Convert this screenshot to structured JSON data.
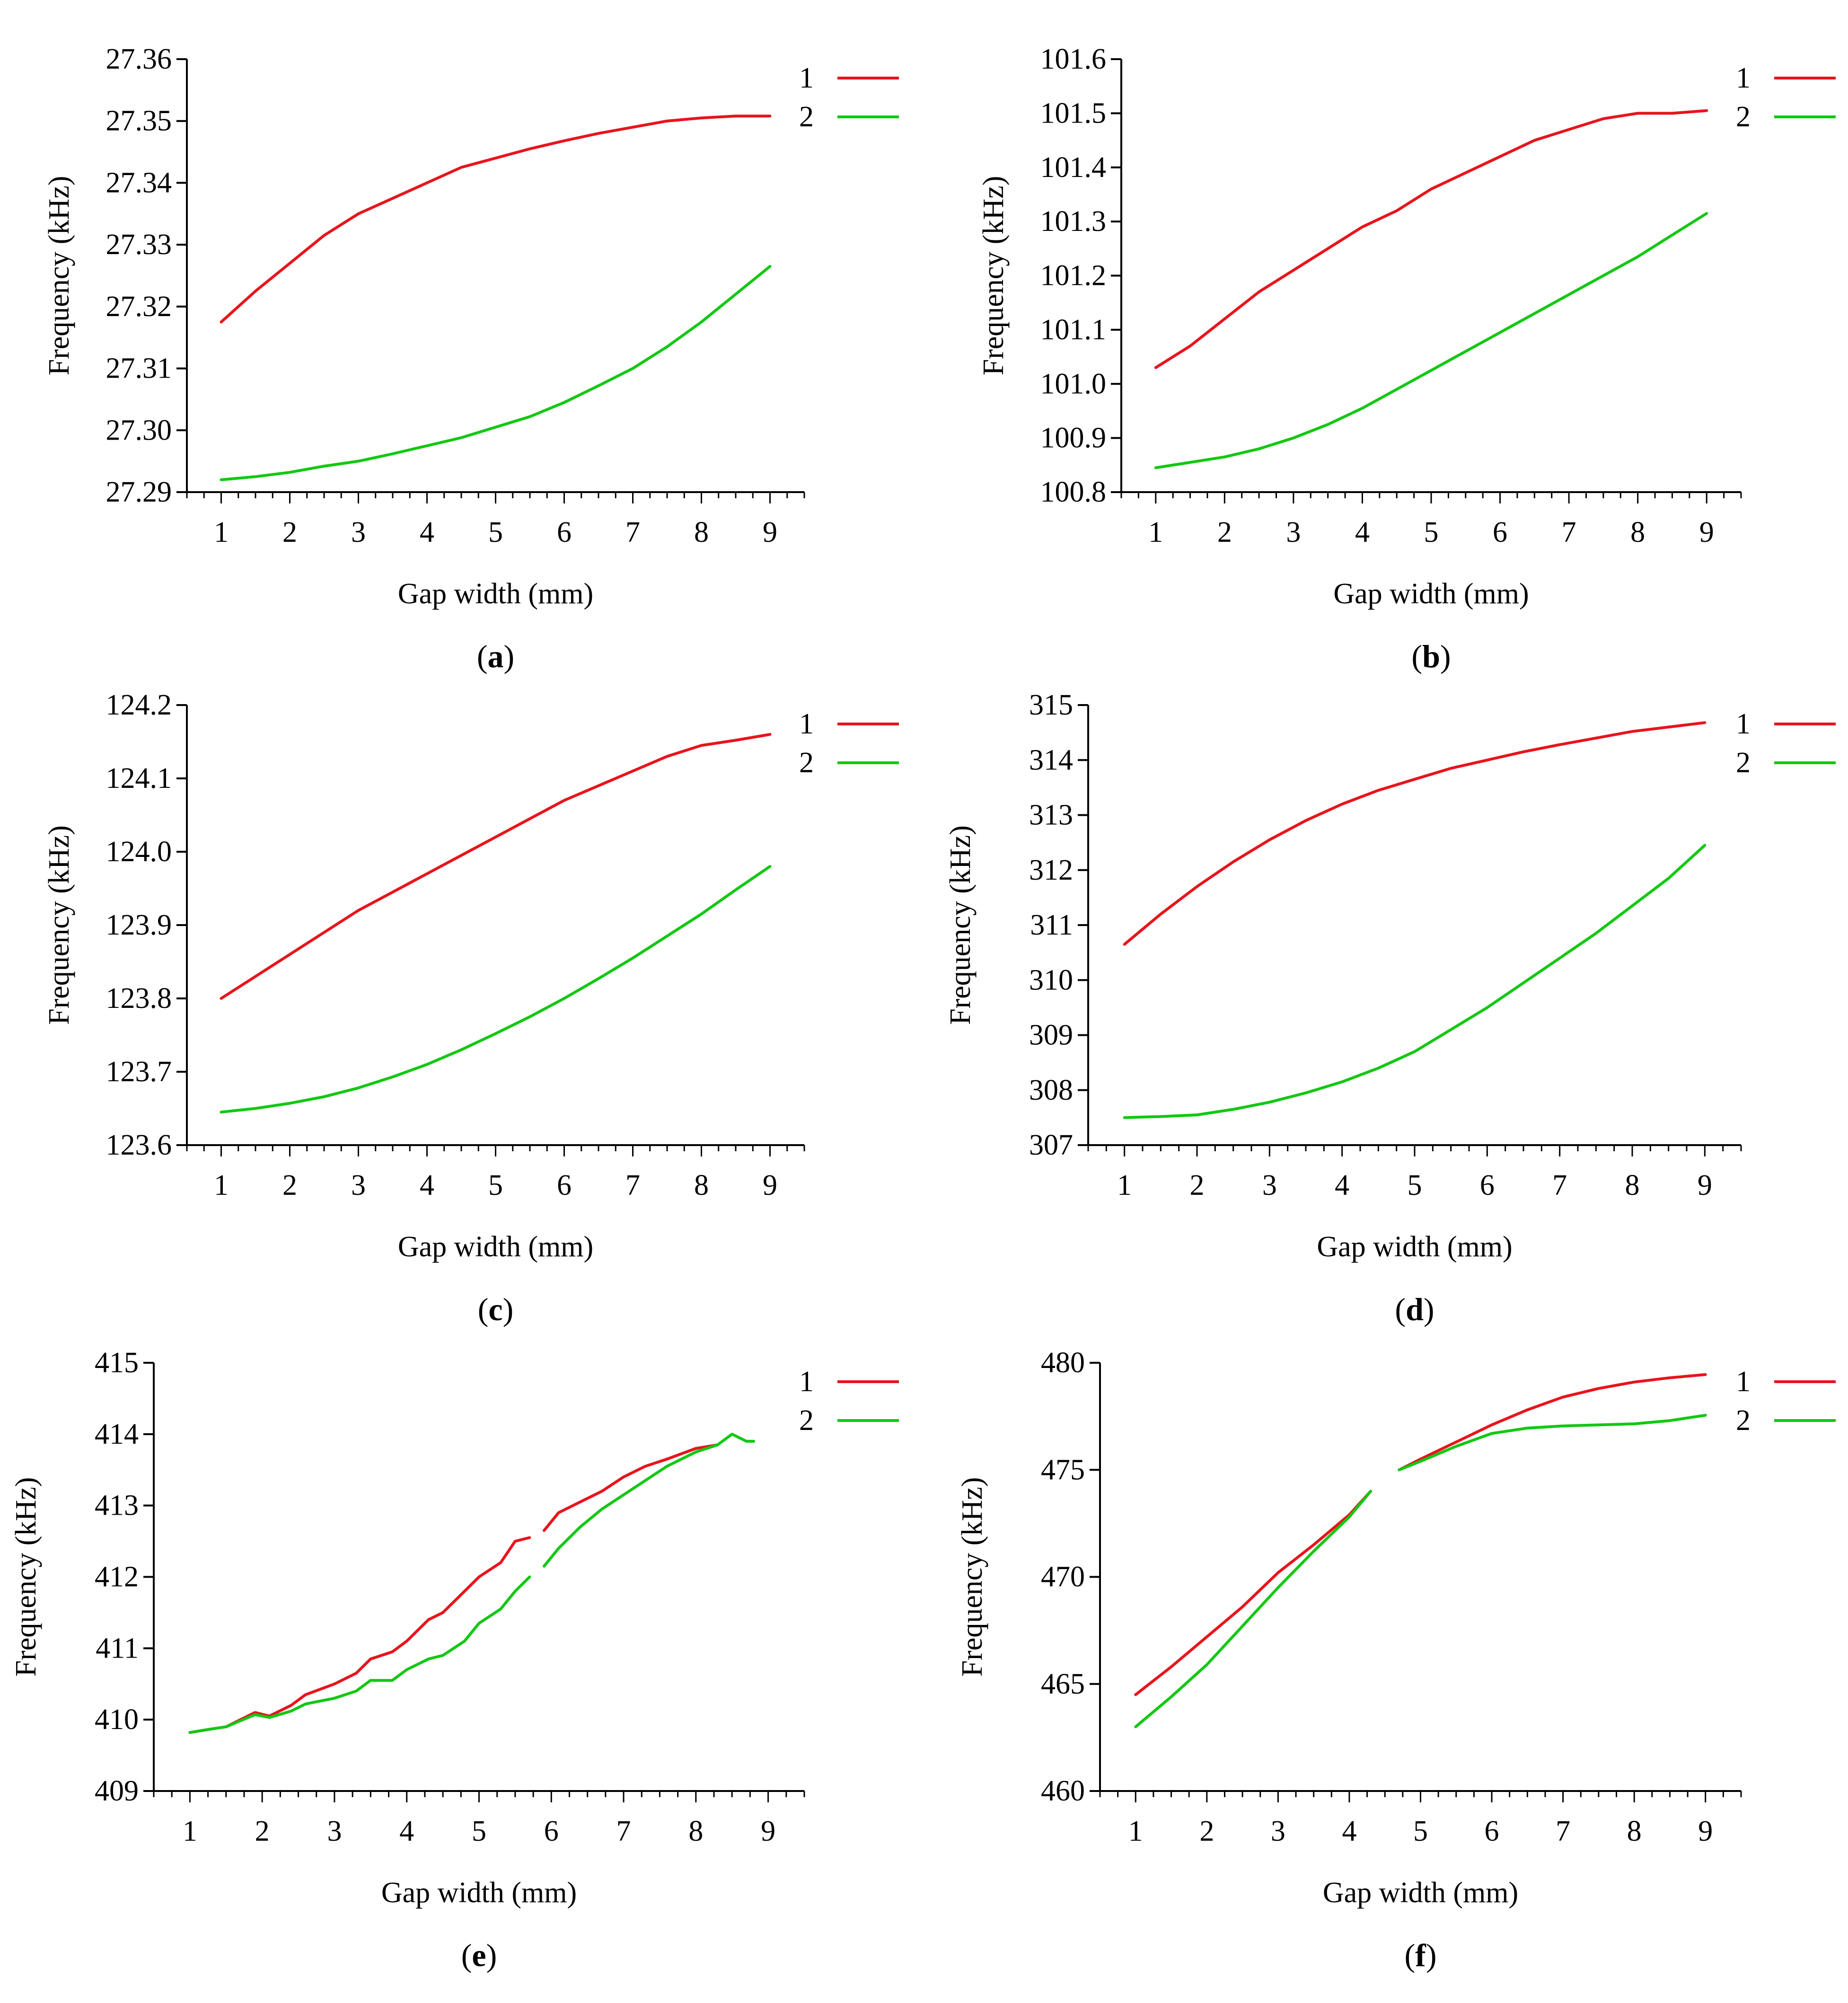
{
  "figure": {
    "xlabel": "Gap width (mm)",
    "ylabel": "Frequency (kHz)"
  },
  "colors": {
    "series1": "#e8141c",
    "series2": "#12c812",
    "axis": "#000000"
  },
  "chart_data": [
    {
      "type": "line",
      "caption": "a",
      "title": "",
      "xlabel": "Gap width (mm)",
      "ylabel": "Frequency (kHz)",
      "xlim": [
        0.5,
        9.5
      ],
      "ylim": [
        27.29,
        27.36
      ],
      "xticks": [
        "1",
        "2",
        "3",
        "4",
        "5",
        "6",
        "7",
        "8",
        "9"
      ],
      "yticks": [
        "27.29",
        "27.30",
        "27.31",
        "27.32",
        "27.33",
        "27.34",
        "27.35",
        "27.36"
      ],
      "legend": [
        "1",
        "2"
      ],
      "legend_position": "top-right",
      "series": [
        {
          "name": "1",
          "segments": [
            {
              "x": [
                1,
                1.5,
                2,
                2.5,
                3,
                3.5,
                4,
                4.5,
                5,
                5.5,
                6,
                6.5,
                7,
                7.5,
                8,
                8.5,
                9
              ],
              "y": [
                27.3175,
                27.3225,
                27.327,
                27.3315,
                27.335,
                27.3375,
                27.34,
                27.3425,
                27.344,
                27.3455,
                27.3468,
                27.348,
                27.349,
                27.35,
                27.3505,
                27.3508,
                27.3508
              ]
            }
          ]
        },
        {
          "name": "2",
          "segments": [
            {
              "x": [
                1,
                1.5,
                2,
                2.5,
                3,
                3.5,
                4,
                4.5,
                5,
                5.5,
                6,
                6.5,
                7,
                7.5,
                8,
                8.5,
                9
              ],
              "y": [
                27.292,
                27.2925,
                27.2932,
                27.2942,
                27.295,
                27.2962,
                27.2975,
                27.2988,
                27.3005,
                27.3022,
                27.3045,
                27.3072,
                27.31,
                27.3135,
                27.3175,
                27.322,
                27.3265
              ]
            }
          ]
        }
      ]
    },
    {
      "type": "line",
      "caption": "b",
      "title": "",
      "xlabel": "Gap width (mm)",
      "ylabel": "Frequency (kHz)",
      "xlim": [
        0.5,
        9.5
      ],
      "ylim": [
        100.8,
        101.6
      ],
      "xticks": [
        "1",
        "2",
        "3",
        "4",
        "5",
        "6",
        "7",
        "8",
        "9"
      ],
      "yticks": [
        "100.8",
        "100.9",
        "101.0",
        "101.1",
        "101.2",
        "101.3",
        "101.4",
        "101.5",
        "101.6"
      ],
      "legend": [
        "1",
        "2"
      ],
      "legend_position": "top-right",
      "series": [
        {
          "name": "1",
          "segments": [
            {
              "x": [
                1,
                1.5,
                2,
                2.5,
                3,
                3.5,
                4,
                4.5,
                5,
                5.5,
                6,
                6.5,
                7,
                7.5,
                8,
                8.5,
                9
              ],
              "y": [
                101.03,
                101.07,
                101.12,
                101.17,
                101.21,
                101.25,
                101.29,
                101.32,
                101.36,
                101.39,
                101.42,
                101.45,
                101.47,
                101.49,
                101.5,
                101.5,
                101.505
              ]
            }
          ]
        },
        {
          "name": "2",
          "segments": [
            {
              "x": [
                1,
                1.5,
                2,
                2.5,
                3,
                3.5,
                4,
                4.5,
                5,
                5.5,
                6,
                6.5,
                7,
                7.5,
                8,
                8.5,
                9
              ],
              "y": [
                100.845,
                100.855,
                100.865,
                100.88,
                100.9,
                100.925,
                100.955,
                100.99,
                101.025,
                101.06,
                101.095,
                101.13,
                101.165,
                101.2,
                101.235,
                101.275,
                101.315
              ]
            }
          ]
        }
      ]
    },
    {
      "type": "line",
      "caption": "c",
      "title": "",
      "xlabel": "Gap width (mm)",
      "ylabel": "Frequency (kHz)",
      "xlim": [
        0.5,
        9.5
      ],
      "ylim": [
        123.6,
        124.2
      ],
      "xticks": [
        "1",
        "2",
        "3",
        "4",
        "5",
        "6",
        "7",
        "8",
        "9"
      ],
      "yticks": [
        "123.6",
        "123.7",
        "123.8",
        "123.9",
        "124.0",
        "124.1",
        "124.2"
      ],
      "legend": [
        "1",
        "2"
      ],
      "legend_position": "top-right",
      "series": [
        {
          "name": "1",
          "segments": [
            {
              "x": [
                1,
                1.5,
                2,
                2.5,
                3,
                3.5,
                4,
                4.5,
                5,
                5.5,
                6,
                6.5,
                7,
                7.5,
                8,
                8.5,
                9
              ],
              "y": [
                123.8,
                123.83,
                123.86,
                123.89,
                123.92,
                123.945,
                123.97,
                123.995,
                124.02,
                124.045,
                124.07,
                124.09,
                124.11,
                124.13,
                124.145,
                124.152,
                124.16
              ]
            }
          ]
        },
        {
          "name": "2",
          "segments": [
            {
              "x": [
                1,
                1.5,
                2,
                2.5,
                3,
                3.5,
                4,
                4.5,
                5,
                5.5,
                6,
                6.5,
                7,
                7.5,
                8,
                8.5,
                9
              ],
              "y": [
                123.645,
                123.65,
                123.657,
                123.666,
                123.678,
                123.693,
                123.71,
                123.73,
                123.752,
                123.775,
                123.8,
                123.827,
                123.855,
                123.885,
                123.915,
                123.948,
                123.98
              ]
            }
          ]
        }
      ]
    },
    {
      "type": "line",
      "caption": "d",
      "title": "",
      "xlabel": "Gap width (mm)",
      "ylabel": "Frequency (kHz)",
      "xlim": [
        0.5,
        9.5
      ],
      "ylim": [
        307,
        315
      ],
      "xticks": [
        "1",
        "2",
        "3",
        "4",
        "5",
        "6",
        "7",
        "8",
        "9"
      ],
      "yticks": [
        "307",
        "308",
        "309",
        "310",
        "311",
        "312",
        "313",
        "314",
        "315"
      ],
      "legend": [
        "1",
        "2"
      ],
      "legend_position": "top-right",
      "series": [
        {
          "name": "1",
          "segments": [
            {
              "x": [
                1,
                1.5,
                2,
                2.5,
                3,
                3.5,
                4,
                4.5,
                5,
                5.5,
                6,
                6.5,
                7,
                7.5,
                8,
                8.5,
                9
              ],
              "y": [
                310.65,
                311.2,
                311.7,
                312.15,
                312.55,
                312.9,
                313.2,
                313.45,
                313.65,
                313.85,
                314.0,
                314.15,
                314.28,
                314.4,
                314.52,
                314.6,
                314.68
              ]
            }
          ]
        },
        {
          "name": "2",
          "segments": [
            {
              "x": [
                1,
                1.5,
                2,
                2.5,
                3,
                3.5,
                4,
                4.5,
                5,
                5.5,
                6,
                6.5,
                7,
                7.5,
                8,
                8.5,
                9
              ],
              "y": [
                307.5,
                307.52,
                307.55,
                307.65,
                307.78,
                307.95,
                308.15,
                308.4,
                308.7,
                309.1,
                309.5,
                309.95,
                310.4,
                310.85,
                311.35,
                311.85,
                312.45
              ]
            }
          ]
        }
      ]
    },
    {
      "type": "line",
      "caption": "e",
      "title": "",
      "xlabel": "Gap width (mm)",
      "ylabel": "Frequency (kHz)",
      "xlim": [
        0.5,
        9.5
      ],
      "ylim": [
        409,
        415
      ],
      "xticks": [
        "1",
        "2",
        "3",
        "4",
        "5",
        "6",
        "7",
        "8",
        "9"
      ],
      "yticks": [
        "409",
        "410",
        "411",
        "412",
        "413",
        "414",
        "415"
      ],
      "legend": [
        "1",
        "2"
      ],
      "legend_position": "top-right",
      "series": [
        {
          "name": "1",
          "segments": [
            {
              "x": [
                1.0,
                1.3
              ],
              "y": [
                409.82,
                409.87
              ]
            },
            {
              "x": [
                1.3,
                1.5,
                1.9,
                2.1,
                2.4,
                2.6,
                3.0,
                3.3,
                3.5,
                3.8,
                4.0,
                4.3,
                4.5,
                4.8,
                5.0,
                5.3,
                5.5,
                5.7
              ],
              "y": [
                409.87,
                409.9,
                410.1,
                410.05,
                410.2,
                410.35,
                410.5,
                410.65,
                410.85,
                410.95,
                411.1,
                411.4,
                411.5,
                411.8,
                412.0,
                412.2,
                412.5,
                412.55
              ]
            },
            {
              "x": [
                5.9,
                6.1,
                6.4,
                6.7,
                7.0,
                7.3,
                7.6,
                8.0,
                8.3
              ],
              "y": [
                412.65,
                412.9,
                413.05,
                413.2,
                413.4,
                413.55,
                413.65,
                413.8,
                413.85
              ]
            }
          ]
        },
        {
          "name": "2",
          "segments": [
            {
              "x": [
                1.0,
                1.3
              ],
              "y": [
                409.82,
                409.87
              ]
            },
            {
              "x": [
                1.3,
                1.5,
                1.9,
                2.1,
                2.4,
                2.6,
                3.0,
                3.3,
                3.5,
                3.8,
                4.0,
                4.3,
                4.5,
                4.8,
                5.0,
                5.3,
                5.5,
                5.7
              ],
              "y": [
                409.87,
                409.9,
                410.07,
                410.03,
                410.12,
                410.22,
                410.3,
                410.4,
                410.55,
                410.55,
                410.7,
                410.85,
                410.9,
                411.1,
                411.35,
                411.55,
                411.8,
                412.0
              ]
            },
            {
              "x": [
                5.9,
                6.1,
                6.4,
                6.7,
                7.0,
                7.3,
                7.6,
                8.0,
                8.3,
                8.5,
                8.7,
                8.8
              ],
              "y": [
                412.15,
                412.4,
                412.7,
                412.95,
                413.15,
                413.35,
                413.55,
                413.75,
                413.85,
                414.0,
                413.9,
                413.9
              ]
            }
          ]
        }
      ]
    },
    {
      "type": "line",
      "caption": "f",
      "title": "",
      "xlabel": "Gap width (mm)",
      "ylabel": "Frequency (kHz)",
      "xlim": [
        0.5,
        9.5
      ],
      "ylim": [
        460,
        480
      ],
      "xticks": [
        "1",
        "2",
        "3",
        "4",
        "5",
        "6",
        "7",
        "8",
        "9"
      ],
      "yticks": [
        "460",
        "465",
        "470",
        "475",
        "480"
      ],
      "legend": [
        "1",
        "2"
      ],
      "legend_position": "top-right",
      "series": [
        {
          "name": "1",
          "segments": [
            {
              "x": [
                1.0,
                1.5,
                2.0,
                2.5,
                3.0,
                3.5,
                4.0,
                4.3
              ],
              "y": [
                464.5,
                465.8,
                467.2,
                468.6,
                470.2,
                471.5,
                472.9,
                474.0
              ]
            },
            {
              "x": [
                4.7,
                5.0,
                5.5,
                6.0,
                6.5,
                7.0,
                7.5,
                8.0,
                8.5,
                9.0
              ],
              "y": [
                475.0,
                475.5,
                476.3,
                477.1,
                477.8,
                478.4,
                478.8,
                479.1,
                479.3,
                479.45
              ]
            }
          ]
        },
        {
          "name": "2",
          "segments": [
            {
              "x": [
                1.0,
                1.5,
                2.0,
                2.5,
                3.0,
                3.5,
                4.0,
                4.3
              ],
              "y": [
                463.0,
                464.4,
                465.9,
                467.7,
                469.5,
                471.2,
                472.8,
                474.0
              ]
            },
            {
              "x": [
                4.7,
                5.0,
                5.5,
                6.0,
                6.5,
                7.0,
                7.5,
                8.0,
                8.5,
                9.0
              ],
              "y": [
                475.0,
                475.4,
                476.1,
                476.7,
                476.95,
                477.05,
                477.1,
                477.15,
                477.3,
                477.55
              ]
            }
          ]
        }
      ]
    }
  ]
}
